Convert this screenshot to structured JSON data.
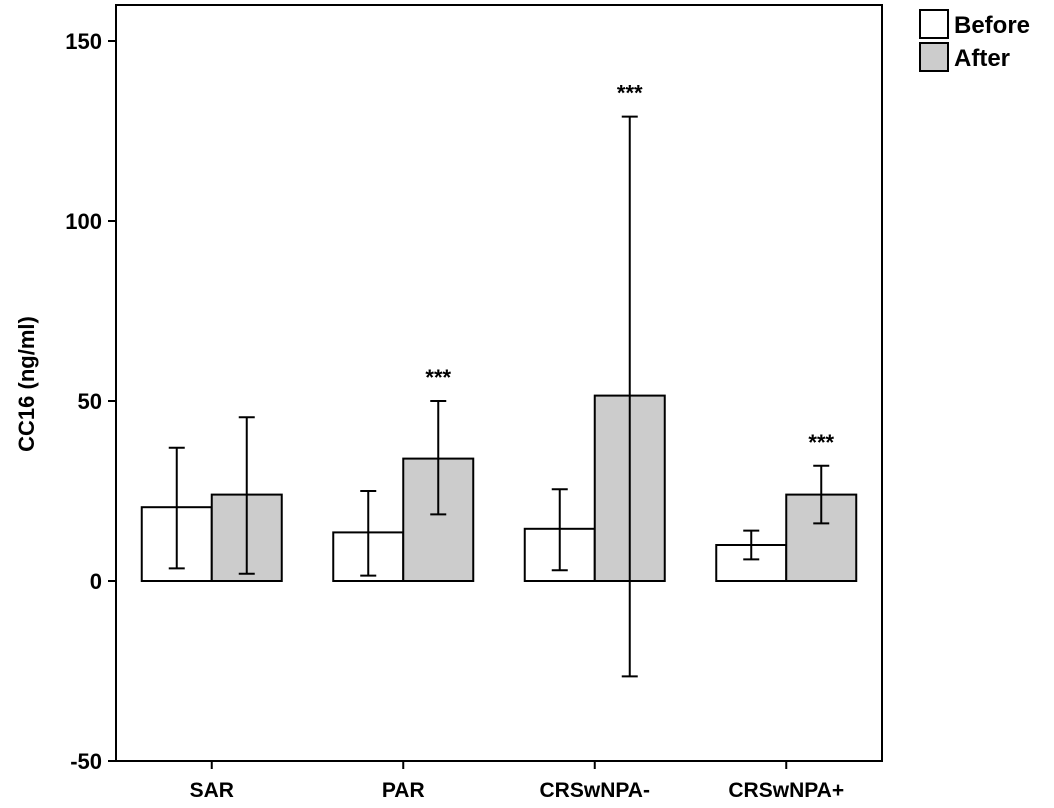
{
  "chart_data": {
    "type": "bar",
    "ylabel": "CC16 (ng/ml)",
    "xlabel": "",
    "ylim": [
      -50,
      160
    ],
    "yticks": [
      -50,
      0,
      50,
      100,
      150
    ],
    "categories": [
      "SAR",
      "PAR",
      "CRSwNPA-",
      "CRSwNPA+"
    ],
    "series": [
      {
        "name": "Before",
        "color": "#ffffff",
        "values": [
          20.5,
          13.5,
          14.5,
          10.0
        ],
        "error_low": [
          3.5,
          1.5,
          3.0,
          6.0
        ],
        "error_high": [
          37.0,
          25.0,
          25.5,
          14.0
        ]
      },
      {
        "name": "After",
        "color": "#cccccc",
        "values": [
          24.0,
          34.0,
          51.5,
          24.0
        ],
        "error_low": [
          2.0,
          18.5,
          -26.5,
          16.0
        ],
        "error_high": [
          45.5,
          50.0,
          129.0,
          32.0
        ]
      }
    ],
    "annotations": [
      {
        "category": "PAR",
        "series": "After",
        "text": "***"
      },
      {
        "category": "CRSwNPA-",
        "series": "After",
        "text": "***"
      },
      {
        "category": "CRSwNPA+",
        "series": "After",
        "text": "***"
      }
    ],
    "grid": false,
    "legend": "top-right"
  }
}
